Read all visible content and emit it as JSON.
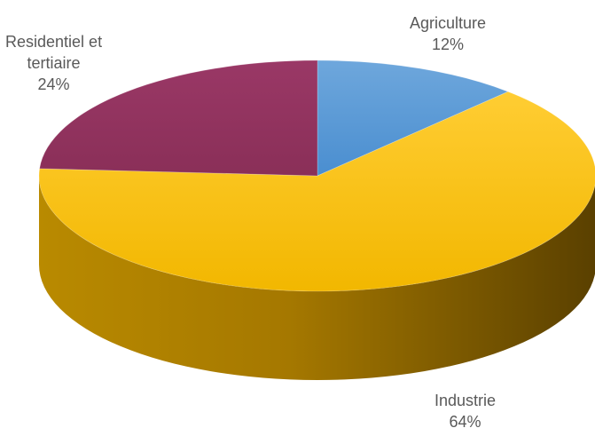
{
  "chart_data": {
    "type": "pie",
    "title": "",
    "style": "3d",
    "slices": [
      {
        "label": "Agriculture",
        "value": 12,
        "display": "12%",
        "color": "#5b9bd5"
      },
      {
        "label": "Industrie",
        "value": 64,
        "display": "64%",
        "color": "#ffc000"
      },
      {
        "label": "Residentiel et tertiaire",
        "label_lines": [
          "Residentiel et",
          "tertiaire"
        ],
        "value": 24,
        "display": "24%",
        "color": "#93335e"
      }
    ],
    "start_angle_deg": 90,
    "direction": "clockwise",
    "legend": "none",
    "data_labels": "outside"
  }
}
